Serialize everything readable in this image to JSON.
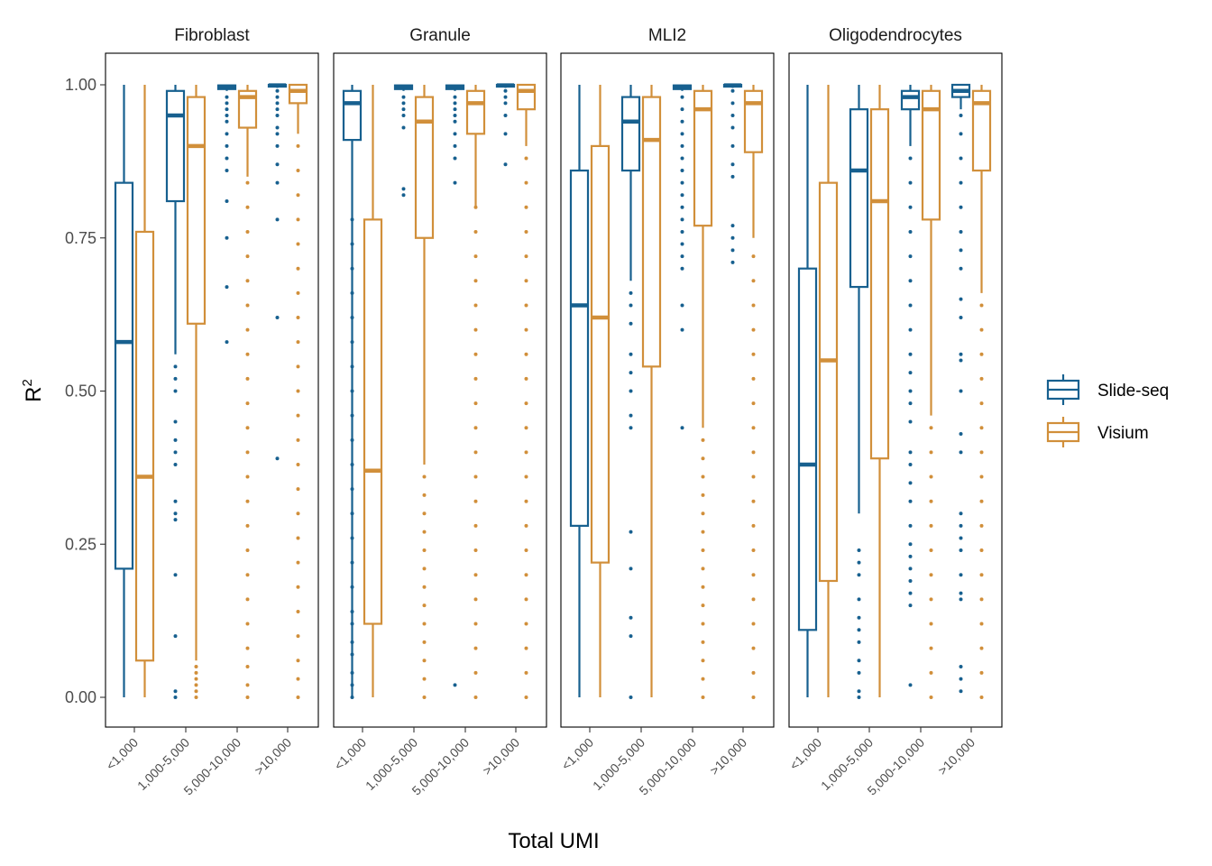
{
  "colors": {
    "Slide-seq": "#17608f",
    "Visium": "#d18f3a",
    "tick": "#333333",
    "frame": "#000000"
  },
  "chart_data": {
    "type": "boxplot",
    "facets": [
      "Fibroblast",
      "Granule",
      "MLI2",
      "Oligodendrocytes"
    ],
    "categories": [
      "<1,000",
      "1,000-5,000",
      "5,000-10,000",
      ">10,000"
    ],
    "xlabel": "Total UMI",
    "ylabel": "R",
    "ylabel_superscript": "2",
    "ylim": [
      -0.05,
      1.05
    ],
    "yticks": [
      0.0,
      0.25,
      0.5,
      0.75,
      1.0
    ],
    "ytick_labels": [
      "0.00",
      "0.25",
      "0.50",
      "0.75",
      "1.00"
    ],
    "legend": [
      "Slide-seq",
      "Visium"
    ],
    "legend_position": "right",
    "grid": false,
    "series": [
      {
        "name": "Slide-seq",
        "boxes": [
          [
            {
              "lower_whisker": 0.0,
              "q1": 0.21,
              "median": 0.58,
              "q3": 0.84,
              "upper_whisker": 1.0,
              "outliers": []
            },
            {
              "lower_whisker": 0.56,
              "q1": 0.81,
              "median": 0.95,
              "q3": 0.99,
              "upper_whisker": 1.0,
              "outliers": [
                0.0,
                0.01,
                0.1,
                0.2,
                0.29,
                0.3,
                0.32,
                0.38,
                0.4,
                0.42,
                0.45,
                0.5,
                0.52,
                0.54
              ]
            },
            {
              "lower_whisker": 0.99,
              "q1": 0.993,
              "median": 0.997,
              "q3": 0.999,
              "upper_whisker": 1.0,
              "outliers": [
                0.58,
                0.67,
                0.75,
                0.81,
                0.86,
                0.88,
                0.9,
                0.92,
                0.94,
                0.95,
                0.96,
                0.97,
                0.98
              ]
            },
            {
              "lower_whisker": 0.995,
              "q1": 0.997,
              "median": 0.999,
              "q3": 1.0,
              "upper_whisker": 1.0,
              "outliers": [
                0.39,
                0.62,
                0.78,
                0.84,
                0.87,
                0.9,
                0.92,
                0.93,
                0.95,
                0.96,
                0.97,
                0.98,
                0.99
              ]
            }
          ],
          [
            {
              "lower_whisker": 0.0,
              "q1": 0.91,
              "median": 0.97,
              "q3": 0.99,
              "upper_whisker": 1.0,
              "outliers": [
                0.0,
                0.02,
                0.04,
                0.07,
                0.09,
                0.12,
                0.14,
                0.18,
                0.22,
                0.26,
                0.3,
                0.34,
                0.38,
                0.42,
                0.46,
                0.5,
                0.54,
                0.58,
                0.62,
                0.66,
                0.7,
                0.74,
                0.78
              ]
            },
            {
              "lower_whisker": 0.99,
              "q1": 0.993,
              "median": 0.997,
              "q3": 0.999,
              "upper_whisker": 1.0,
              "outliers": [
                0.82,
                0.83,
                0.93,
                0.95,
                0.96,
                0.97,
                0.98
              ]
            },
            {
              "lower_whisker": 0.99,
              "q1": 0.993,
              "median": 0.997,
              "q3": 0.999,
              "upper_whisker": 1.0,
              "outliers": [
                0.02,
                0.84,
                0.88,
                0.9,
                0.92,
                0.94,
                0.95,
                0.96,
                0.97,
                0.98
              ]
            },
            {
              "lower_whisker": 0.995,
              "q1": 0.997,
              "median": 0.999,
              "q3": 1.0,
              "upper_whisker": 1.0,
              "outliers": [
                0.87,
                0.92,
                0.95,
                0.97,
                0.98,
                0.99
              ]
            }
          ],
          [
            {
              "lower_whisker": 0.0,
              "q1": 0.28,
              "median": 0.64,
              "q3": 0.86,
              "upper_whisker": 1.0,
              "outliers": []
            },
            {
              "lower_whisker": 0.68,
              "q1": 0.86,
              "median": 0.94,
              "q3": 0.98,
              "upper_whisker": 1.0,
              "outliers": [
                0.0,
                0.1,
                0.13,
                0.21,
                0.27,
                0.44,
                0.46,
                0.5,
                0.53,
                0.56,
                0.61,
                0.64,
                0.66
              ]
            },
            {
              "lower_whisker": 0.99,
              "q1": 0.993,
              "median": 0.997,
              "q3": 0.999,
              "upper_whisker": 1.0,
              "outliers": [
                0.44,
                0.6,
                0.64,
                0.7,
                0.72,
                0.74,
                0.76,
                0.78,
                0.8,
                0.82,
                0.84,
                0.86,
                0.88,
                0.9,
                0.92,
                0.94,
                0.96,
                0.98
              ]
            },
            {
              "lower_whisker": 0.995,
              "q1": 0.997,
              "median": 0.999,
              "q3": 1.0,
              "upper_whisker": 1.0,
              "outliers": [
                0.71,
                0.73,
                0.75,
                0.77,
                0.85,
                0.87,
                0.9,
                0.93,
                0.95,
                0.97,
                0.99
              ]
            }
          ],
          [
            {
              "lower_whisker": 0.0,
              "q1": 0.11,
              "median": 0.38,
              "q3": 0.7,
              "upper_whisker": 1.0,
              "outliers": []
            },
            {
              "lower_whisker": 0.3,
              "q1": 0.67,
              "median": 0.86,
              "q3": 0.96,
              "upper_whisker": 1.0,
              "outliers": [
                0.0,
                0.01,
                0.04,
                0.06,
                0.09,
                0.11,
                0.13,
                0.16,
                0.2,
                0.22,
                0.24
              ]
            },
            {
              "lower_whisker": 0.9,
              "q1": 0.96,
              "median": 0.98,
              "q3": 0.99,
              "upper_whisker": 1.0,
              "outliers": [
                0.02,
                0.15,
                0.17,
                0.19,
                0.21,
                0.23,
                0.25,
                0.28,
                0.32,
                0.35,
                0.38,
                0.4,
                0.45,
                0.48,
                0.5,
                0.53,
                0.56,
                0.6,
                0.64,
                0.68,
                0.72,
                0.76,
                0.8,
                0.84,
                0.88
              ]
            },
            {
              "lower_whisker": 0.96,
              "q1": 0.98,
              "median": 0.99,
              "q3": 1.0,
              "upper_whisker": 1.0,
              "outliers": [
                0.01,
                0.03,
                0.05,
                0.16,
                0.17,
                0.2,
                0.24,
                0.26,
                0.28,
                0.3,
                0.4,
                0.43,
                0.5,
                0.55,
                0.56,
                0.62,
                0.65,
                0.7,
                0.73,
                0.76,
                0.8,
                0.84,
                0.88,
                0.92,
                0.95
              ]
            }
          ]
        ]
      },
      {
        "name": "Visium",
        "boxes": [
          [
            {
              "lower_whisker": 0.0,
              "q1": 0.06,
              "median": 0.36,
              "q3": 0.76,
              "upper_whisker": 1.0,
              "outliers": []
            },
            {
              "lower_whisker": 0.06,
              "q1": 0.61,
              "median": 0.9,
              "q3": 0.98,
              "upper_whisker": 1.0,
              "outliers": [
                0.0,
                0.01,
                0.02,
                0.03,
                0.04,
                0.05
              ]
            },
            {
              "lower_whisker": 0.85,
              "q1": 0.93,
              "median": 0.98,
              "q3": 0.99,
              "upper_whisker": 1.0,
              "outliers": [
                0.0,
                0.02,
                0.05,
                0.08,
                0.12,
                0.16,
                0.2,
                0.24,
                0.28,
                0.32,
                0.36,
                0.4,
                0.44,
                0.48,
                0.52,
                0.56,
                0.6,
                0.64,
                0.68,
                0.72,
                0.76,
                0.8,
                0.84
              ]
            },
            {
              "lower_whisker": 0.92,
              "q1": 0.97,
              "median": 0.99,
              "q3": 1.0,
              "upper_whisker": 1.0,
              "outliers": [
                0.0,
                0.03,
                0.06,
                0.1,
                0.14,
                0.18,
                0.22,
                0.26,
                0.3,
                0.34,
                0.38,
                0.42,
                0.46,
                0.5,
                0.54,
                0.58,
                0.62,
                0.66,
                0.7,
                0.74,
                0.78,
                0.82,
                0.86,
                0.9
              ]
            }
          ],
          [
            {
              "lower_whisker": 0.0,
              "q1": 0.12,
              "median": 0.37,
              "q3": 0.78,
              "upper_whisker": 1.0,
              "outliers": []
            },
            {
              "lower_whisker": 0.38,
              "q1": 0.75,
              "median": 0.94,
              "q3": 0.98,
              "upper_whisker": 1.0,
              "outliers": [
                0.0,
                0.03,
                0.06,
                0.09,
                0.12,
                0.15,
                0.18,
                0.21,
                0.24,
                0.27,
                0.3,
                0.33,
                0.36
              ]
            },
            {
              "lower_whisker": 0.8,
              "q1": 0.92,
              "median": 0.97,
              "q3": 0.99,
              "upper_whisker": 1.0,
              "outliers": [
                0.0,
                0.04,
                0.08,
                0.12,
                0.16,
                0.2,
                0.24,
                0.28,
                0.32,
                0.36,
                0.4,
                0.44,
                0.48,
                0.52,
                0.56,
                0.6,
                0.64,
                0.68,
                0.72,
                0.76,
                0.8
              ]
            },
            {
              "lower_whisker": 0.9,
              "q1": 0.96,
              "median": 0.99,
              "q3": 1.0,
              "upper_whisker": 1.0,
              "outliers": [
                0.0,
                0.04,
                0.08,
                0.12,
                0.16,
                0.2,
                0.24,
                0.28,
                0.32,
                0.36,
                0.4,
                0.44,
                0.48,
                0.52,
                0.56,
                0.6,
                0.64,
                0.68,
                0.72,
                0.76,
                0.8,
                0.84,
                0.88
              ]
            }
          ],
          [
            {
              "lower_whisker": 0.0,
              "q1": 0.22,
              "median": 0.62,
              "q3": 0.9,
              "upper_whisker": 1.0,
              "outliers": []
            },
            {
              "lower_whisker": 0.0,
              "q1": 0.54,
              "median": 0.91,
              "q3": 0.98,
              "upper_whisker": 1.0,
              "outliers": []
            },
            {
              "lower_whisker": 0.44,
              "q1": 0.77,
              "median": 0.96,
              "q3": 0.99,
              "upper_whisker": 1.0,
              "outliers": [
                0.0,
                0.03,
                0.06,
                0.09,
                0.12,
                0.15,
                0.18,
                0.21,
                0.24,
                0.27,
                0.3,
                0.33,
                0.36,
                0.39,
                0.42
              ]
            },
            {
              "lower_whisker": 0.75,
              "q1": 0.89,
              "median": 0.97,
              "q3": 0.99,
              "upper_whisker": 1.0,
              "outliers": [
                0.0,
                0.04,
                0.08,
                0.12,
                0.16,
                0.2,
                0.24,
                0.28,
                0.32,
                0.36,
                0.4,
                0.44,
                0.48,
                0.52,
                0.56,
                0.6,
                0.64,
                0.68,
                0.72
              ]
            }
          ],
          [
            {
              "lower_whisker": 0.0,
              "q1": 0.19,
              "median": 0.55,
              "q3": 0.84,
              "upper_whisker": 1.0,
              "outliers": []
            },
            {
              "lower_whisker": 0.0,
              "q1": 0.39,
              "median": 0.81,
              "q3": 0.96,
              "upper_whisker": 1.0,
              "outliers": []
            },
            {
              "lower_whisker": 0.46,
              "q1": 0.78,
              "median": 0.96,
              "q3": 0.99,
              "upper_whisker": 1.0,
              "outliers": [
                0.0,
                0.04,
                0.08,
                0.12,
                0.16,
                0.2,
                0.24,
                0.28,
                0.32,
                0.36,
                0.4,
                0.44
              ]
            },
            {
              "lower_whisker": 0.66,
              "q1": 0.86,
              "median": 0.97,
              "q3": 0.99,
              "upper_whisker": 1.0,
              "outliers": [
                0.0,
                0.04,
                0.08,
                0.12,
                0.16,
                0.2,
                0.24,
                0.28,
                0.32,
                0.36,
                0.4,
                0.44,
                0.48,
                0.52,
                0.56,
                0.6,
                0.64
              ]
            }
          ]
        ]
      }
    ]
  }
}
